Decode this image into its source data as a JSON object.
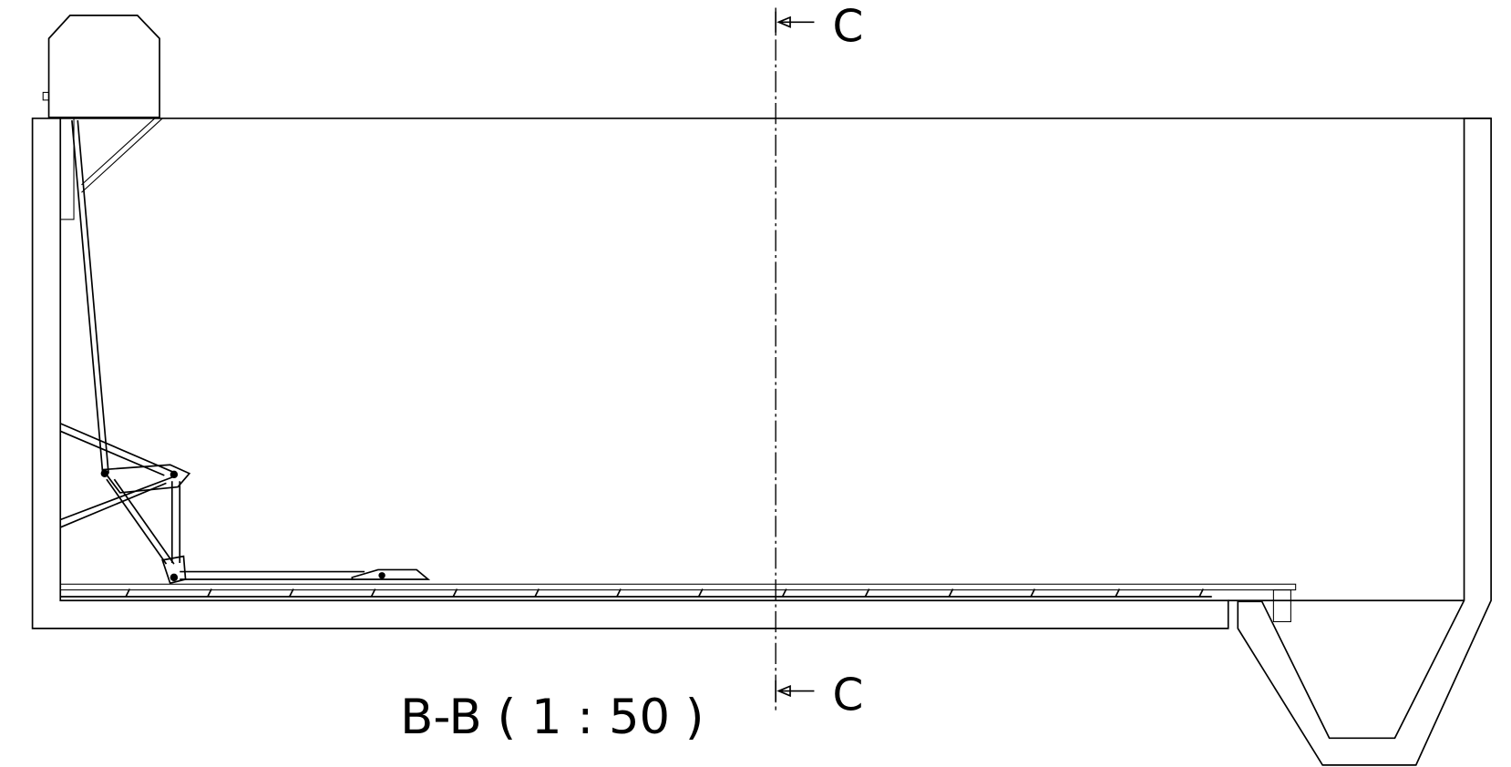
{
  "section_marks": {
    "top": "C",
    "bottom": "C"
  },
  "view_label": "B-B ( 1 : 50 )"
}
